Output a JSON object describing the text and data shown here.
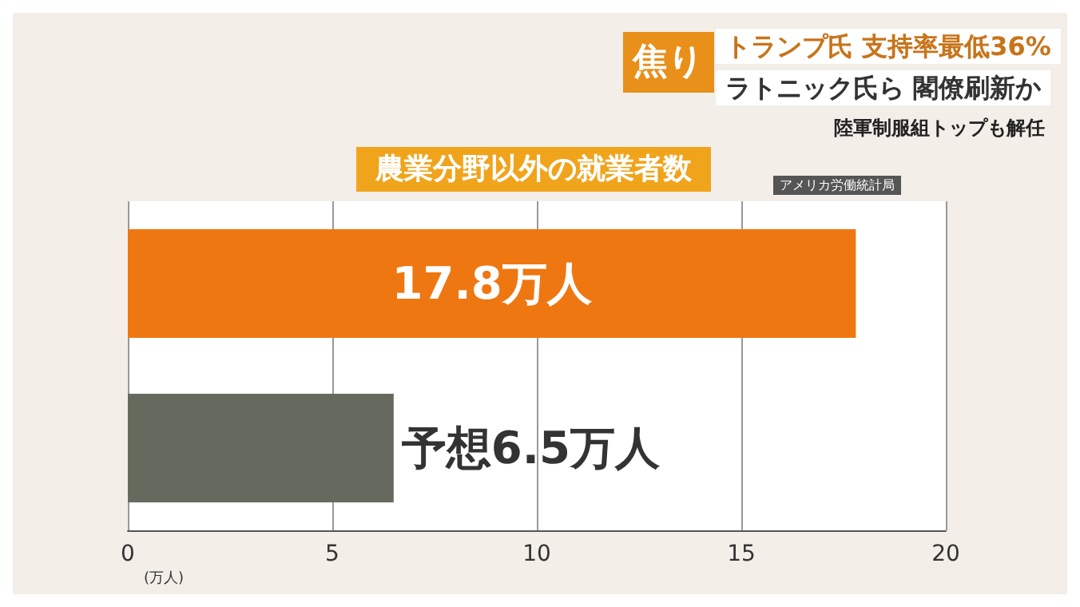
{
  "chart_data": {
    "type": "bar",
    "orientation": "horizontal",
    "title": "農業分野以外の就業者数",
    "xlabel": "(万人)",
    "categories": [
      null,
      null
    ],
    "values": [
      17.8,
      6.5
    ],
    "colors": [
      "#ee7711",
      "#666a5e"
    ],
    "value_labels": [
      "17.8万人",
      "予想6.5万人"
    ],
    "xlim": [
      0,
      20
    ],
    "xticks": [
      0,
      5,
      10,
      15,
      20
    ],
    "grid": "x",
    "annotations": [
      "焦り",
      "トランプ氏 支持率最低36%",
      "ラトニック氏ら 閣僚刷新か",
      "陸軍制服組トップも解任",
      "アメリカ労働統計局"
    ]
  }
}
